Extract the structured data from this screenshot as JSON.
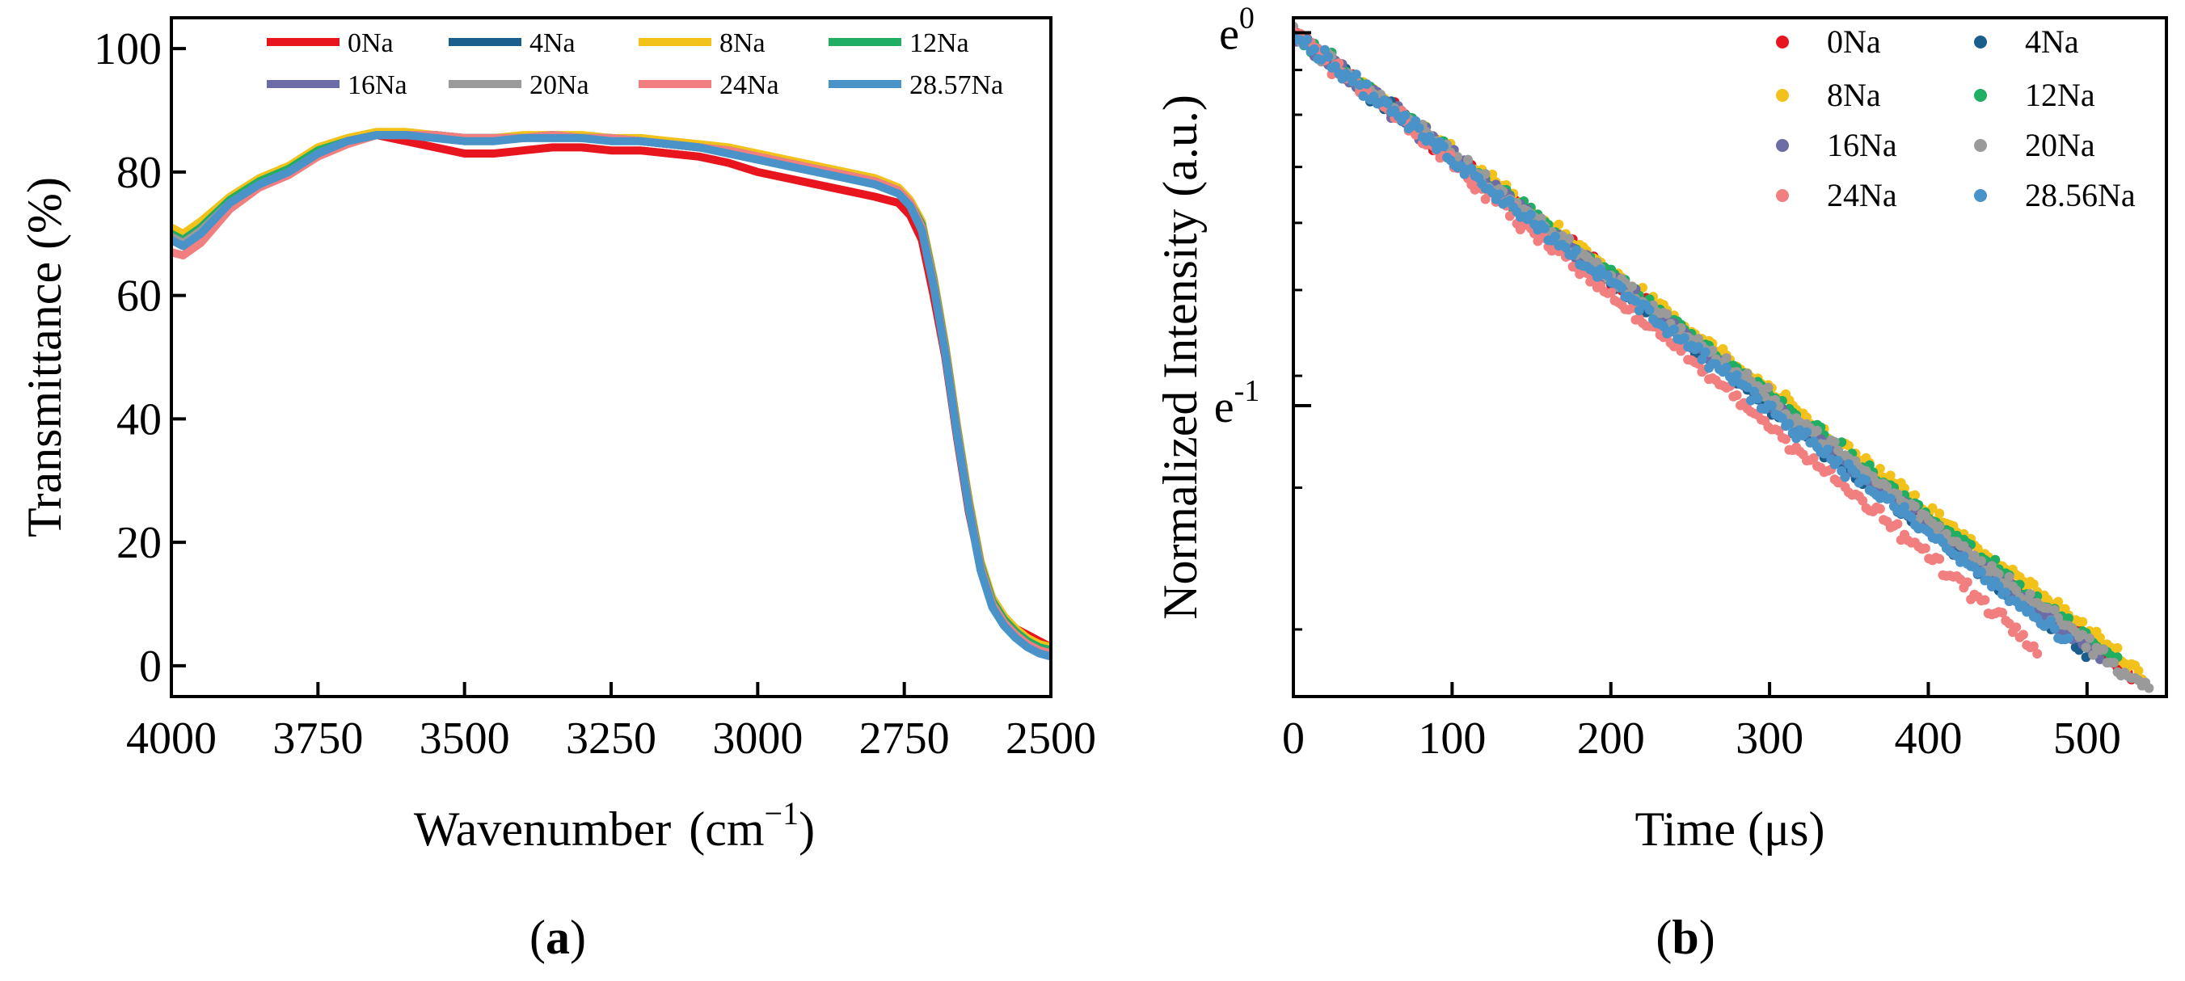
{
  "panels": {
    "a": {
      "open": "(",
      "letter": "a",
      "close": ")"
    },
    "b": {
      "open": "(",
      "letter": "b",
      "close": ")"
    }
  },
  "chart_data": [
    {
      "type": "line",
      "xlabel_main": "Wavenumber",
      "xlabel_unit_open": "(cm",
      "xlabel_unit_sup": "−1",
      "xlabel_unit_close": ")",
      "ylabel": "Transmittance (%)",
      "xlim": [
        4000,
        2500
      ],
      "ylim": [
        -5,
        105
      ],
      "xticks": [
        4000,
        3750,
        3500,
        3250,
        3000,
        2750,
        2500
      ],
      "yticks": [
        0,
        20,
        40,
        60,
        80,
        100
      ],
      "legend_placement": "top",
      "series": [
        {
          "name": "0Na",
          "color": "#e8141e",
          "x": [
            4000,
            3980,
            3950,
            3900,
            3850,
            3800,
            3750,
            3700,
            3650,
            3600,
            3550,
            3500,
            3450,
            3400,
            3350,
            3300,
            3250,
            3200,
            3150,
            3100,
            3050,
            3000,
            2950,
            2900,
            2850,
            2800,
            2760,
            2740,
            2720,
            2700,
            2680,
            2660,
            2640,
            2620,
            2600,
            2580,
            2560,
            2540,
            2520,
            2500
          ],
          "y": [
            70,
            69,
            70,
            75,
            78,
            80,
            83,
            85,
            86,
            85,
            84,
            83,
            83,
            83.5,
            84,
            84,
            83.5,
            83.5,
            83,
            82.5,
            81.5,
            80,
            79,
            78,
            77,
            76,
            75,
            73,
            69,
            60,
            50,
            37,
            25,
            16,
            11,
            8,
            6,
            5,
            4,
            3
          ]
        },
        {
          "name": "4Na",
          "color": "#1a5e8e",
          "x": [
            4000,
            3980,
            3950,
            3900,
            3850,
            3800,
            3750,
            3700,
            3650,
            3600,
            3550,
            3500,
            3450,
            3400,
            3350,
            3300,
            3250,
            3200,
            3150,
            3100,
            3050,
            3000,
            2950,
            2900,
            2850,
            2800,
            2760,
            2740,
            2720,
            2700,
            2680,
            2660,
            2640,
            2620,
            2600,
            2580,
            2560,
            2540,
            2520,
            2500
          ],
          "y": [
            69,
            68,
            70,
            75,
            78,
            80,
            83,
            85,
            86,
            86,
            86,
            85.5,
            85.5,
            85.5,
            86,
            85.5,
            85.5,
            85,
            84.5,
            84,
            83.5,
            82.5,
            81.5,
            80.5,
            79.5,
            78.5,
            77,
            75,
            71,
            62,
            51,
            38,
            26,
            16,
            10,
            7,
            5,
            3.5,
            2.5,
            2
          ]
        },
        {
          "name": "8Na",
          "color": "#f2c21b",
          "x": [
            4000,
            3980,
            3950,
            3900,
            3850,
            3800,
            3750,
            3700,
            3650,
            3600,
            3550,
            3500,
            3450,
            3400,
            3350,
            3300,
            3250,
            3200,
            3150,
            3100,
            3050,
            3000,
            2950,
            2900,
            2850,
            2800,
            2760,
            2740,
            2720,
            2700,
            2680,
            2660,
            2640,
            2620,
            2600,
            2580,
            2560,
            2540,
            2520,
            2500
          ],
          "y": [
            71,
            70,
            72,
            76,
            79,
            81,
            84,
            85.5,
            86.5,
            86.5,
            86,
            85.5,
            85.5,
            86,
            86,
            86,
            85.5,
            85.5,
            85,
            84.5,
            84,
            83,
            82,
            81,
            80,
            79,
            77.5,
            75.5,
            72,
            63,
            52,
            39,
            27,
            17,
            11,
            8,
            6,
            4.5,
            3.5,
            3
          ]
        },
        {
          "name": "12Na",
          "color": "#1fae62",
          "x": [
            4000,
            3980,
            3950,
            3900,
            3850,
            3800,
            3750,
            3700,
            3650,
            3600,
            3550,
            3500,
            3450,
            3400,
            3350,
            3300,
            3250,
            3200,
            3150,
            3100,
            3050,
            3000,
            2950,
            2900,
            2850,
            2800,
            2760,
            2740,
            2720,
            2700,
            2680,
            2660,
            2640,
            2620,
            2600,
            2580,
            2560,
            2540,
            2520,
            2500
          ],
          "y": [
            70,
            69,
            71,
            75.5,
            78.5,
            80.5,
            83.5,
            85,
            86,
            86,
            86,
            85.5,
            85.5,
            85.5,
            86,
            85.5,
            85.5,
            85,
            84.5,
            84,
            83.5,
            82.5,
            81.5,
            80.5,
            79.5,
            78.5,
            77,
            75,
            71.5,
            62.5,
            51.5,
            38.5,
            26.5,
            16.5,
            10.5,
            7.5,
            5.5,
            4,
            3,
            2.5
          ]
        },
        {
          "name": "16Na",
          "color": "#6c6ca6",
          "x": [
            4000,
            3980,
            3950,
            3900,
            3850,
            3800,
            3750,
            3700,
            3650,
            3600,
            3550,
            3500,
            3450,
            3400,
            3350,
            3300,
            3250,
            3200,
            3150,
            3100,
            3050,
            3000,
            2950,
            2900,
            2850,
            2800,
            2760,
            2740,
            2720,
            2700,
            2680,
            2660,
            2640,
            2620,
            2600,
            2580,
            2560,
            2540,
            2520,
            2500
          ],
          "y": [
            69.5,
            68.5,
            70.5,
            75,
            78,
            80,
            83,
            85,
            86,
            86,
            86,
            85.5,
            85.5,
            85.5,
            86,
            85.5,
            85.5,
            85,
            84.5,
            84,
            83.5,
            82.5,
            81.5,
            80.5,
            79.5,
            78.5,
            77,
            75,
            71,
            62,
            51,
            38,
            26,
            16,
            10,
            7,
            5,
            3.5,
            2.5,
            2
          ]
        },
        {
          "name": "20Na",
          "color": "#9a9a9a",
          "x": [
            4000,
            3980,
            3950,
            3900,
            3850,
            3800,
            3750,
            3700,
            3650,
            3600,
            3550,
            3500,
            3450,
            3400,
            3350,
            3300,
            3250,
            3200,
            3150,
            3100,
            3050,
            3000,
            2950,
            2900,
            2850,
            2800,
            2760,
            2740,
            2720,
            2700,
            2680,
            2660,
            2640,
            2620,
            2600,
            2580,
            2560,
            2540,
            2520,
            2500
          ],
          "y": [
            69.5,
            68.5,
            70.5,
            75,
            78,
            80,
            83,
            85,
            86,
            86,
            86,
            85.5,
            85.5,
            85.5,
            86,
            85.5,
            85.5,
            85,
            84.5,
            84,
            83.5,
            82.5,
            81.5,
            80.5,
            79.5,
            78.5,
            77,
            75,
            71,
            62,
            51,
            38,
            26,
            16,
            10,
            7,
            5,
            3.5,
            2.5,
            2
          ]
        },
        {
          "name": "24Na",
          "color": "#f27f7f",
          "x": [
            4000,
            3980,
            3950,
            3900,
            3850,
            3800,
            3750,
            3700,
            3650,
            3600,
            3550,
            3500,
            3450,
            3400,
            3350,
            3300,
            3250,
            3200,
            3150,
            3100,
            3050,
            3000,
            2950,
            2900,
            2850,
            2800,
            2760,
            2740,
            2720,
            2700,
            2680,
            2660,
            2640,
            2620,
            2600,
            2580,
            2560,
            2540,
            2520,
            2500
          ],
          "y": [
            67,
            66.5,
            68.5,
            74,
            77.5,
            79.5,
            82.5,
            84.5,
            86,
            86,
            86,
            85.5,
            85.5,
            85.5,
            86,
            85.5,
            85.5,
            85,
            84.5,
            84,
            83.5,
            82.5,
            81.5,
            80.5,
            79.5,
            78.5,
            77,
            75,
            71,
            62,
            51,
            38,
            26,
            16,
            10,
            7,
            5,
            3.5,
            2.5,
            2
          ]
        },
        {
          "name": "28.57Na",
          "color": "#4a93c8",
          "x": [
            4000,
            3980,
            3950,
            3900,
            3850,
            3800,
            3750,
            3700,
            3650,
            3600,
            3550,
            3500,
            3450,
            3400,
            3350,
            3300,
            3250,
            3200,
            3150,
            3100,
            3050,
            3000,
            2950,
            2900,
            2850,
            2800,
            2760,
            2740,
            2720,
            2700,
            2680,
            2660,
            2640,
            2620,
            2600,
            2580,
            2560,
            2540,
            2520,
            2500
          ],
          "y": [
            69,
            68,
            70,
            75,
            78,
            80,
            83,
            85,
            86,
            86,
            85.5,
            85,
            85,
            85.5,
            85.5,
            85.5,
            85,
            85,
            84.5,
            84,
            83,
            82,
            81,
            80,
            79,
            78,
            76.5,
            74.5,
            70.5,
            61.5,
            50.5,
            37.5,
            25.5,
            15.5,
            9.5,
            6.5,
            4.5,
            3,
            2,
            1.5
          ]
        }
      ]
    },
    {
      "type": "scatter",
      "xlabel_main": "Time (",
      "xlabel_mu": "μ",
      "xlabel_end": "s)",
      "ylabel": "Normalized Intensity (a.u.)",
      "yscale": "log_e",
      "xlim": [
        0,
        550
      ],
      "ylim_ln": [
        -1.78,
        0.04
      ],
      "xticks": [
        0,
        100,
        200,
        300,
        400,
        500
      ],
      "yticks": [
        {
          "base": "e",
          "exp": "0",
          "ln": 0
        },
        {
          "base": "e",
          "exp": "-1",
          "ln": -1
        }
      ],
      "legend_placement": "top-right",
      "noise_ln": 0.035,
      "series": [
        {
          "name": "0Na",
          "color": "#e8141e",
          "tau_us": 305,
          "x_end": 530
        },
        {
          "name": "4Na",
          "color": "#1a5e8e",
          "tau_us": 300,
          "x_end": 500
        },
        {
          "name": "8Na",
          "color": "#f2c21b",
          "tau_us": 312,
          "x_end": 535
        },
        {
          "name": "12Na",
          "color": "#1fae62",
          "tau_us": 308,
          "x_end": 520
        },
        {
          "name": "16Na",
          "color": "#6c6ca6",
          "tau_us": 303,
          "x_end": 510
        },
        {
          "name": "20Na",
          "color": "#9a9a9a",
          "tau_us": 306,
          "x_end": 540
        },
        {
          "name": "24Na",
          "color": "#f27f7f",
          "tau_us": 285,
          "x_end": 470
        },
        {
          "name": "28.56Na",
          "color": "#4a93c8",
          "tau_us": 298,
          "x_end": 490
        }
      ]
    }
  ]
}
